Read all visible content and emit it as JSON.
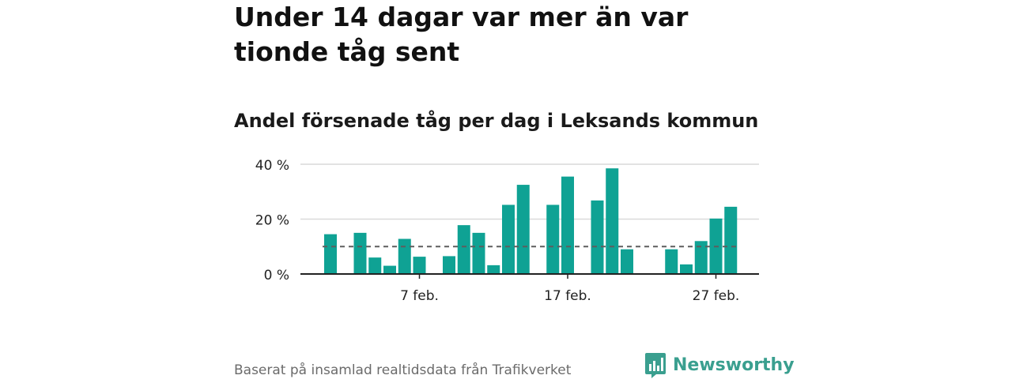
{
  "headline": "Under 14 dagar var mer än var tionde tåg sent",
  "subtitle": "Andel försenade tåg per dag i Leksands kommun",
  "footer": {
    "source": "Baserat på insamlad realtidsdata från Trafikverket",
    "brand": "Newsworthy"
  },
  "colors": {
    "bar": "#0fa294",
    "brand": "#3a9f8f",
    "reference_line": "#5e5e5e",
    "grid": "#d9d9d9",
    "axis": "#222222"
  },
  "chart_data": {
    "type": "bar",
    "x_type": "date",
    "x": [
      "2020-02-01",
      "2020-02-02",
      "2020-02-03",
      "2020-02-04",
      "2020-02-05",
      "2020-02-06",
      "2020-02-07",
      "2020-02-08",
      "2020-02-09",
      "2020-02-10",
      "2020-02-11",
      "2020-02-12",
      "2020-02-13",
      "2020-02-14",
      "2020-02-15",
      "2020-02-16",
      "2020-02-17",
      "2020-02-18",
      "2020-02-19",
      "2020-02-20",
      "2020-02-21",
      "2020-02-22",
      "2020-02-23",
      "2020-02-24",
      "2020-02-25",
      "2020-02-26",
      "2020-02-27",
      "2020-02-28"
    ],
    "values": [
      14.5,
      null,
      15,
      6,
      3,
      12.8,
      6.3,
      null,
      6.5,
      17.8,
      15,
      3.2,
      25.2,
      32.5,
      null,
      25.2,
      35.5,
      null,
      26.8,
      38.5,
      9,
      null,
      null,
      9,
      3.5,
      12,
      20.2,
      24.5
    ],
    "ylim": [
      0,
      40
    ],
    "y_ticks": [
      0,
      20,
      40
    ],
    "y_tick_labels": [
      "0 %",
      "20 %",
      "40 %"
    ],
    "x_ticks": [
      "2020-02-07",
      "2020-02-17",
      "2020-02-27"
    ],
    "x_tick_labels": [
      "7 feb.",
      "17 feb.",
      "27 feb."
    ],
    "reference_line": 10,
    "reference_line_style": "dashed",
    "grid": "horizontal",
    "legend": "none",
    "title": "Andel försenade tåg per dag i Leksands kommun",
    "xlabel": "",
    "ylabel": ""
  }
}
